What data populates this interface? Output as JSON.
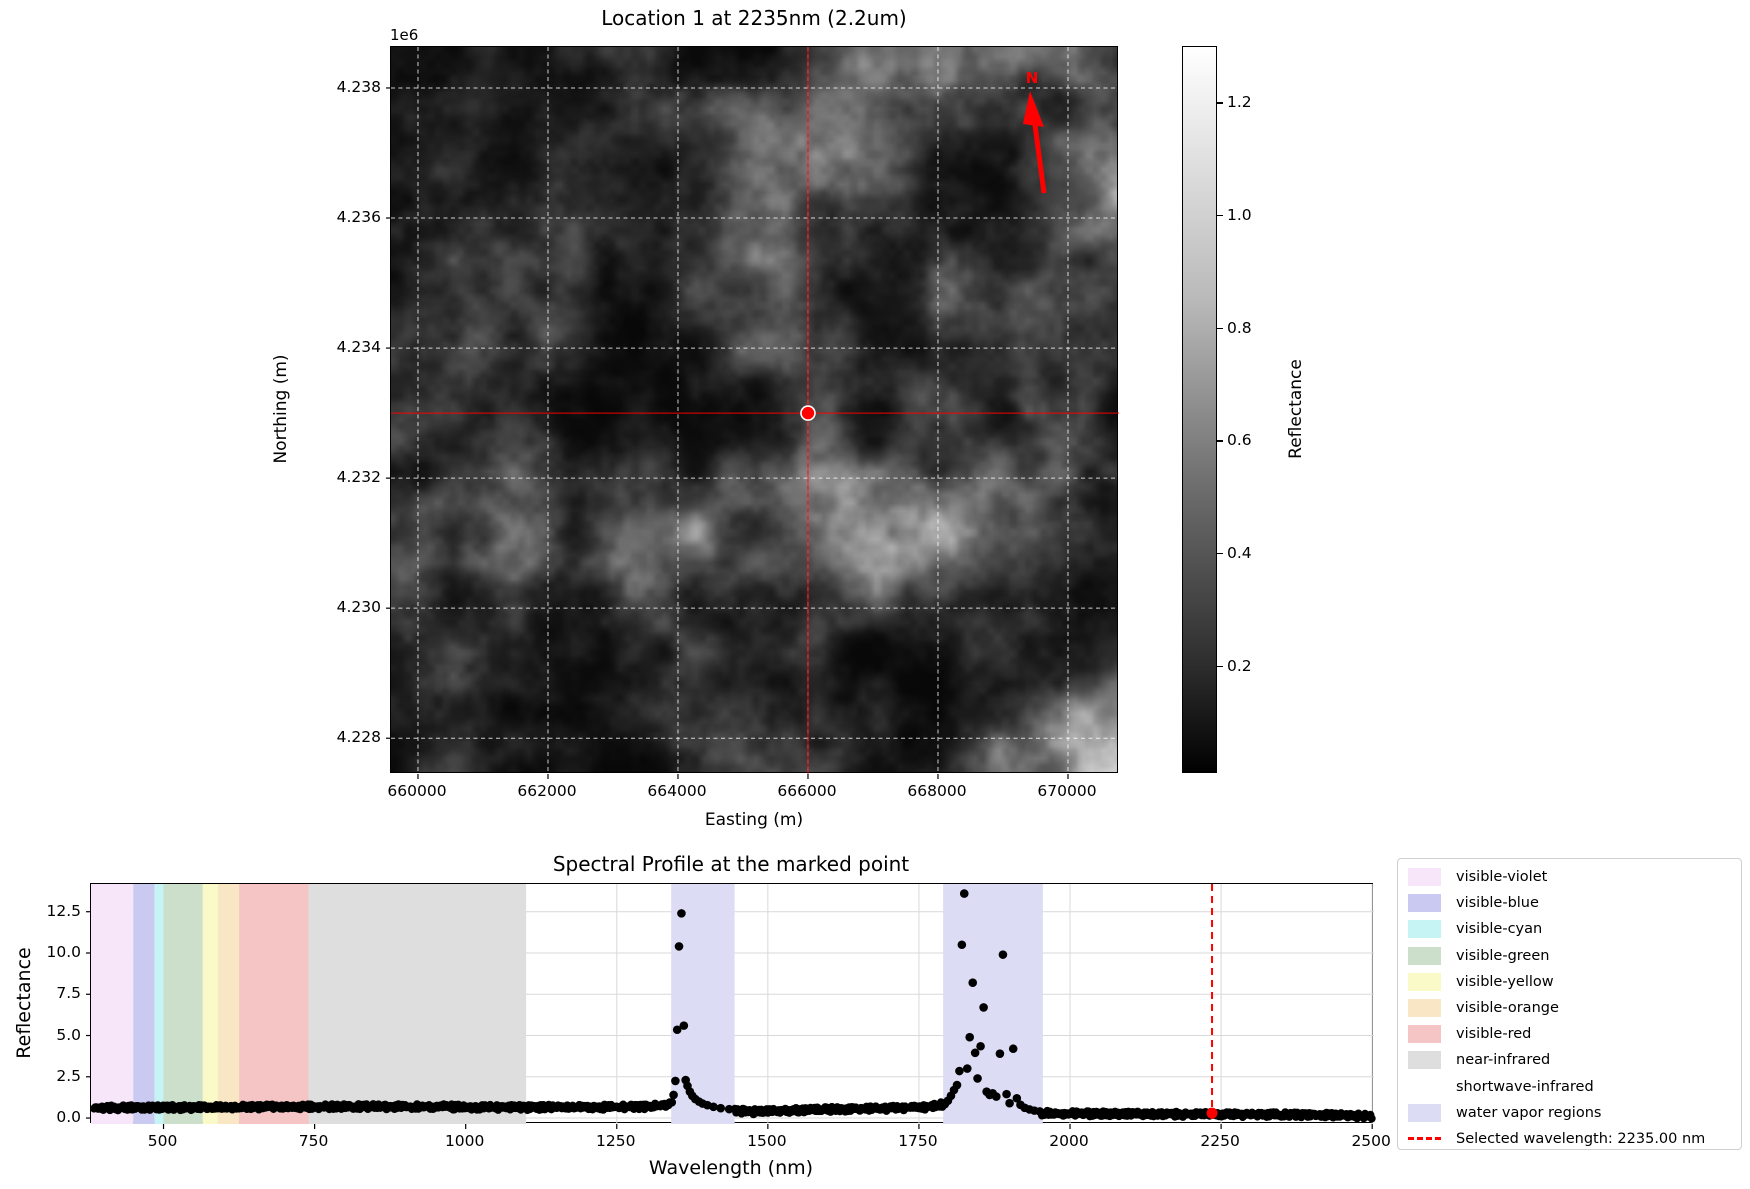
{
  "figure": {
    "background": "#ffffff"
  },
  "map_panel": {
    "title": "Location 1 at 2235nm (2.2um)",
    "axis_offset_label": "1e6",
    "xlabel": "Easting (m)",
    "ylabel": "Northing (m)",
    "x_tick_values": [
      660000,
      662000,
      664000,
      666000,
      668000,
      670000
    ],
    "x_tick_labels": [
      "660000",
      "662000",
      "664000",
      "666000",
      "668000",
      "670000"
    ],
    "y_tick_values": [
      4228000,
      4230000,
      4232000,
      4234000,
      4236000,
      4238000
    ],
    "y_tick_labels": [
      "4.228",
      "4.230",
      "4.232",
      "4.234",
      "4.236",
      "4.238"
    ],
    "easting_range": [
      659585,
      670785
    ],
    "northing_range": [
      4227450,
      4238630
    ],
    "marked_point": {
      "easting": 666000,
      "northing": 4233000
    },
    "north_arrow_label": "N",
    "accent_color": "#ff0000",
    "marker_fill": "#ff0000",
    "marker_edge": "#ffffff",
    "gridline_color": "#ffffff"
  },
  "colorbar": {
    "label": "Reflectance",
    "tick_values": [
      0.2,
      0.4,
      0.6,
      0.8,
      1.0,
      1.2
    ],
    "tick_labels": [
      "0.2",
      "0.4",
      "0.6",
      "0.8",
      "1.0",
      "1.2"
    ],
    "range": [
      0.01,
      1.3
    ],
    "top_color": "#ffffff",
    "bottom_color": "#000000"
  },
  "chart_data": {
    "type": "scatter",
    "title": "Spectral Profile at the marked point",
    "xlabel": "Wavelength (nm)",
    "ylabel": "Reflectance",
    "xlim": [
      380,
      2503
    ],
    "ylim": [
      -0.36,
      14.18
    ],
    "x_tick_values": [
      500,
      750,
      1000,
      1250,
      1500,
      1750,
      2000,
      2250,
      2500
    ],
    "x_tick_labels": [
      "500",
      "750",
      "1000",
      "1250",
      "1500",
      "1750",
      "2000",
      "2250",
      "2500"
    ],
    "y_tick_values": [
      0,
      2.5,
      5,
      7.5,
      10,
      12.5
    ],
    "y_tick_labels": [
      "0.0",
      "2.5",
      "5.0",
      "7.5",
      "10.0",
      "12.5"
    ],
    "grid": true,
    "gridline_color": "#d9d9d9",
    "point_color": "#000000",
    "selected_wavelength_nm": 2235.0,
    "selected_point": [
      2235.0,
      0.3
    ],
    "selected_line_color": "#ff0000",
    "wavelength_bands": [
      {
        "name": "visible-violet",
        "nm": [
          380,
          450
        ],
        "color": "#f7e6f9"
      },
      {
        "name": "visible-blue",
        "nm": [
          450,
          485
        ],
        "color": "#c9c9f2"
      },
      {
        "name": "visible-cyan",
        "nm": [
          485,
          500
        ],
        "color": "#c6f3f3"
      },
      {
        "name": "visible-green",
        "nm": [
          500,
          565
        ],
        "color": "#cbdfcb"
      },
      {
        "name": "visible-yellow",
        "nm": [
          565,
          590
        ],
        "color": "#fafac8"
      },
      {
        "name": "visible-orange",
        "nm": [
          590,
          625
        ],
        "color": "#f9e6c4"
      },
      {
        "name": "visible-red",
        "nm": [
          625,
          740
        ],
        "color": "#f5c4c4"
      },
      {
        "name": "near-infrared",
        "nm": [
          740,
          1100
        ],
        "color": "#dedede"
      },
      {
        "name": "shortwave-infrared",
        "nm": [
          1100,
          2503
        ],
        "color": "#ffffff"
      },
      {
        "name": "water vapor regions",
        "nm": [
          1340,
          1445
        ],
        "color": "#dcdcf5"
      },
      {
        "name": "water vapor regions",
        "nm": [
          1790,
          1955
        ],
        "color": "#dcdcf5"
      }
    ],
    "baseline_profile": [
      [
        380,
        0.68
      ],
      [
        420,
        0.7
      ],
      [
        500,
        0.71
      ],
      [
        600,
        0.73
      ],
      [
        700,
        0.76
      ],
      [
        800,
        0.78
      ],
      [
        950,
        0.76
      ],
      [
        1100,
        0.72
      ],
      [
        1250,
        0.74
      ],
      [
        1310,
        0.78
      ],
      [
        1332,
        0.92
      ],
      [
        1450,
        0.5
      ],
      [
        1480,
        0.46
      ],
      [
        1540,
        0.55
      ],
      [
        1620,
        0.62
      ],
      [
        1700,
        0.67
      ],
      [
        1760,
        0.72
      ],
      [
        1786,
        0.88
      ],
      [
        1958,
        0.36
      ],
      [
        2050,
        0.33
      ],
      [
        2150,
        0.32
      ],
      [
        2235,
        0.3
      ],
      [
        2320,
        0.29
      ],
      [
        2400,
        0.27
      ],
      [
        2450,
        0.25
      ],
      [
        2480,
        0.2
      ],
      [
        2500,
        0.17
      ]
    ],
    "spike_points": [
      [
        1341,
        0.95
      ],
      [
        1344,
        1.4
      ],
      [
        1347,
        2.25
      ],
      [
        1350,
        5.35
      ],
      [
        1353,
        10.4
      ],
      [
        1357,
        12.4
      ],
      [
        1361,
        5.6
      ],
      [
        1364,
        2.3
      ],
      [
        1367,
        1.95
      ],
      [
        1371,
        1.6
      ],
      [
        1375,
        1.35
      ],
      [
        1380,
        1.15
      ],
      [
        1386,
        1.0
      ],
      [
        1392,
        0.88
      ],
      [
        1400,
        0.78
      ],
      [
        1410,
        0.68
      ],
      [
        1422,
        0.6
      ],
      [
        1436,
        0.54
      ],
      [
        1793,
        0.85
      ],
      [
        1798,
        1.05
      ],
      [
        1803,
        1.35
      ],
      [
        1808,
        1.7
      ],
      [
        1813,
        2.0
      ],
      [
        1817,
        2.85
      ],
      [
        1821,
        10.5
      ],
      [
        1825,
        13.6
      ],
      [
        1830,
        3.0
      ],
      [
        1834,
        4.9
      ],
      [
        1839,
        8.2
      ],
      [
        1843,
        3.95
      ],
      [
        1847,
        2.4
      ],
      [
        1852,
        4.35
      ],
      [
        1857,
        6.7
      ],
      [
        1862,
        1.6
      ],
      [
        1867,
        1.4
      ],
      [
        1872,
        1.5
      ],
      [
        1878,
        1.3
      ],
      [
        1884,
        3.9
      ],
      [
        1889,
        9.9
      ],
      [
        1895,
        1.45
      ],
      [
        1900,
        0.9
      ],
      [
        1906,
        4.2
      ],
      [
        1912,
        1.2
      ],
      [
        1918,
        0.8
      ],
      [
        1925,
        0.62
      ],
      [
        1933,
        0.52
      ],
      [
        1941,
        0.45
      ],
      [
        1950,
        0.4
      ]
    ]
  },
  "legend": {
    "items": [
      {
        "label": "visible-violet",
        "type": "patch",
        "color": "#f7e6f9"
      },
      {
        "label": "visible-blue",
        "type": "patch",
        "color": "#c9c9f2"
      },
      {
        "label": "visible-cyan",
        "type": "patch",
        "color": "#c6f3f3"
      },
      {
        "label": "visible-green",
        "type": "patch",
        "color": "#cbdfcb"
      },
      {
        "label": "visible-yellow",
        "type": "patch",
        "color": "#fafac8"
      },
      {
        "label": "visible-orange",
        "type": "patch",
        "color": "#f9e6c4"
      },
      {
        "label": "visible-red",
        "type": "patch",
        "color": "#f5c4c4"
      },
      {
        "label": "near-infrared",
        "type": "patch",
        "color": "#dedede"
      },
      {
        "label": "shortwave-infrared",
        "type": "patch",
        "color": "#ffffff"
      },
      {
        "label": "water vapor regions",
        "type": "patch",
        "color": "#dcdcf5"
      },
      {
        "label": "Selected wavelength: 2235.00 nm",
        "type": "dashed-line",
        "color": "#ff0000"
      }
    ]
  }
}
